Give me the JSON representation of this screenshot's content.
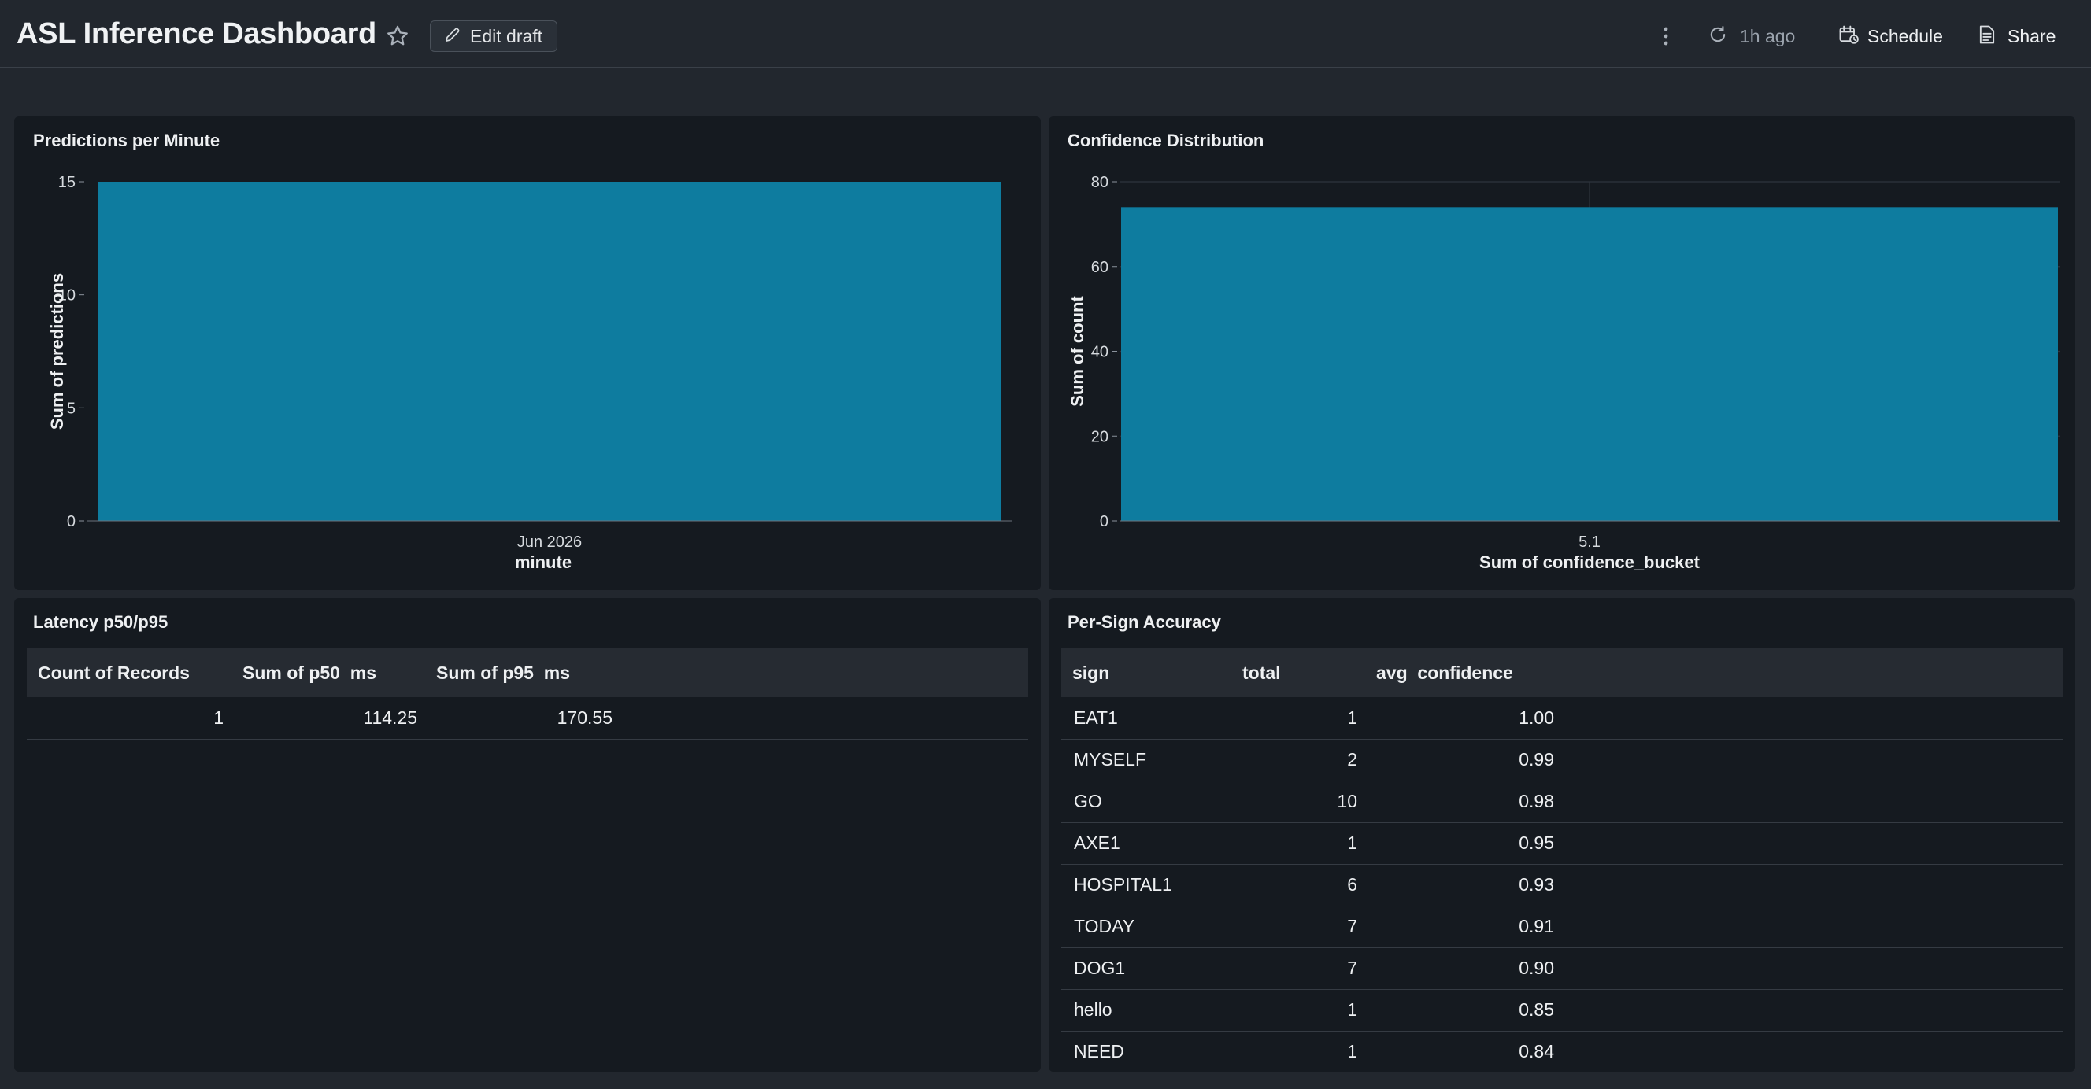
{
  "header": {
    "title": "ASL Inference Dashboard",
    "edit_label": "Edit draft",
    "refresh_label": "1h ago",
    "schedule_label": "Schedule",
    "share_label": "Share"
  },
  "colors": {
    "bar": "#0e7c9f",
    "panel_bg": "#151a20",
    "page_bg": "#22272e"
  },
  "panels": {
    "predictions": {
      "title": "Predictions per Minute",
      "chart_data": {
        "type": "bar",
        "categories": [
          "Jun 2026"
        ],
        "values": [
          15
        ],
        "xlabel": "minute",
        "ylabel": "Sum of predictions",
        "ylim": [
          0,
          15
        ],
        "yticks": [
          "0",
          "5",
          "10",
          "15"
        ],
        "grid": false
      }
    },
    "confidence": {
      "title": "Confidence Distribution",
      "chart_data": {
        "type": "bar",
        "categories": [
          "5.1"
        ],
        "values": [
          74
        ],
        "xlabel": "Sum of confidence_bucket",
        "ylabel": "Sum of count",
        "ylim": [
          0,
          80
        ],
        "yticks": [
          "0",
          "20",
          "40",
          "60",
          "80"
        ],
        "grid": true
      }
    },
    "latency": {
      "title": "Latency p50/p95",
      "columns": [
        "Count of Records",
        "Sum of p50_ms",
        "Sum of p95_ms"
      ],
      "rows": [
        [
          "1",
          "114.25",
          "170.55"
        ]
      ]
    },
    "accuracy": {
      "title": "Per-Sign Accuracy",
      "columns": [
        "sign",
        "total",
        "avg_confidence"
      ],
      "rows": [
        [
          "EAT1",
          "1",
          "1.00"
        ],
        [
          "MYSELF",
          "2",
          "0.99"
        ],
        [
          "GO",
          "10",
          "0.98"
        ],
        [
          "AXE1",
          "1",
          "0.95"
        ],
        [
          "HOSPITAL1",
          "6",
          "0.93"
        ],
        [
          "TODAY",
          "7",
          "0.91"
        ],
        [
          "DOG1",
          "7",
          "0.90"
        ],
        [
          "hello",
          "1",
          "0.85"
        ],
        [
          "NEED",
          "1",
          "0.84"
        ]
      ]
    }
  }
}
